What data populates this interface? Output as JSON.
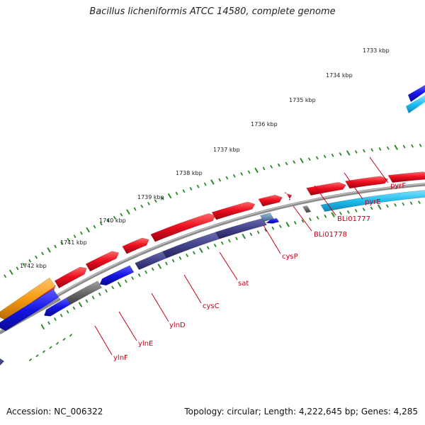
{
  "title": "Bacillus licheniformis ATCC 14580, complete genome",
  "footer": {
    "accession": "Accession: NC_006322",
    "stats": "Topology: circular; Length: 4,222,645 bp; Genes: 4,285"
  },
  "ruler": {
    "ticks": [
      "1733 kbp",
      "1734 kbp",
      "1735 kbp",
      "1736 kbp",
      "1737 kbp",
      "1738 kbp",
      "1739 kbp",
      "1740 kbp",
      "1741 kbp",
      "1742 kbp"
    ]
  },
  "genes": [
    {
      "label": "pyrF"
    },
    {
      "label": "pyrE"
    },
    {
      "label": "BLi01777"
    },
    {
      "label": "BLi01778"
    },
    {
      "label": "cysP"
    },
    {
      "label": "sat"
    },
    {
      "label": "cysC"
    },
    {
      "label": "ylnD"
    },
    {
      "label": "ylnE"
    },
    {
      "label": "ylnF"
    }
  ],
  "colors": {
    "backbone": "#8c8c8c",
    "forward_cds": "#e8001c",
    "reverse_cds": "#1010e0",
    "rna": "#444488",
    "other": "#707070",
    "cyan_feature": "#20c0f0",
    "orange_feature": "#f39a12",
    "tick": "#2a8a2a",
    "label": "#c4001a"
  }
}
